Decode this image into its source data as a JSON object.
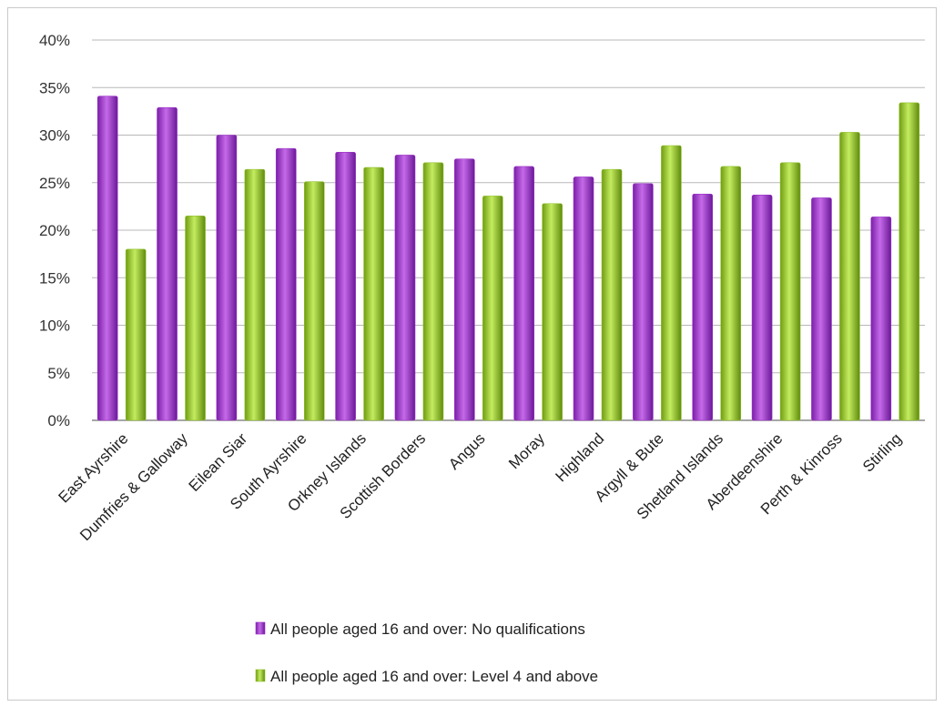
{
  "chart_data": {
    "type": "bar",
    "title": "",
    "xlabel": "",
    "ylabel": "",
    "ylim": [
      0,
      40
    ],
    "yticks": [
      "0%",
      "5%",
      "10%",
      "15%",
      "20%",
      "25%",
      "30%",
      "35%",
      "40%"
    ],
    "grid": true,
    "legend_position": "bottom",
    "categories": [
      "East Ayrshire",
      "Dumfries & Galloway",
      "Eilean Siar",
      "South Ayrshire",
      "Orkney Islands",
      "Scottish Borders",
      "Angus",
      "Moray",
      "Highland",
      "Argyll & Bute",
      "Shetland Islands",
      "Aberdeenshire",
      "Perth & Kinross",
      "Stirling"
    ],
    "series": [
      {
        "name": "All people aged 16 and over: No qualifications",
        "color": "#9b30c8",
        "values": [
          34.1,
          32.9,
          30.0,
          28.6,
          28.2,
          27.9,
          27.5,
          26.7,
          25.6,
          24.9,
          23.8,
          23.7,
          23.4,
          21.4
        ]
      },
      {
        "name": "All people aged 16 and over: Level 4 and above",
        "color": "#8fc02a",
        "values": [
          18.0,
          21.5,
          26.4,
          25.1,
          26.6,
          27.1,
          23.6,
          22.8,
          26.4,
          28.9,
          26.7,
          27.1,
          30.3,
          33.4
        ]
      }
    ]
  }
}
